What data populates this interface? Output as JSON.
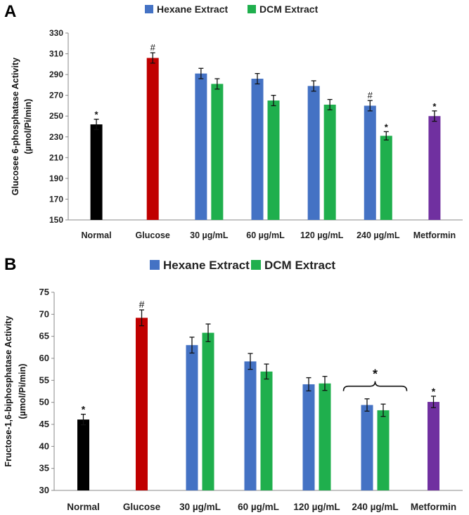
{
  "chart_data": [
    {
      "panel": "A",
      "type": "bar",
      "legend": [
        {
          "name": "Hexane Extract",
          "color": "#4472c4"
        },
        {
          "name": "DCM Extract",
          "color": "#1faf4d"
        }
      ],
      "ylabel_lines": [
        "Glucosee 6-phosphatase Activity",
        "(µmol/Pi/min)"
      ],
      "ylim": [
        150,
        330
      ],
      "yticks": [
        150,
        170,
        190,
        210,
        230,
        250,
        270,
        290,
        310,
        330
      ],
      "categories": [
        "Normal",
        "Glucose",
        "30 µg/mL",
        "60 µg/mL",
        "120 µg/mL",
        "240 µg/mL",
        "Metformin"
      ],
      "bars": [
        {
          "category": "Normal",
          "series": "Normal",
          "color": "#000000",
          "value": 242,
          "error": 5,
          "mark": "*"
        },
        {
          "category": "Glucose",
          "series": "Glucose",
          "color": "#c00000",
          "value": 306,
          "error": 5,
          "mark": "#"
        },
        {
          "category": "30 µg/mL",
          "series": "Hexane Extract",
          "color": "#4472c4",
          "value": 291,
          "error": 5,
          "mark": ""
        },
        {
          "category": "30 µg/mL",
          "series": "DCM Extract",
          "color": "#1faf4d",
          "value": 281,
          "error": 5,
          "mark": ""
        },
        {
          "category": "60 µg/mL",
          "series": "Hexane Extract",
          "color": "#4472c4",
          "value": 286,
          "error": 5,
          "mark": ""
        },
        {
          "category": "60 µg/mL",
          "series": "DCM Extract",
          "color": "#1faf4d",
          "value": 265,
          "error": 5,
          "mark": ""
        },
        {
          "category": "120 µg/mL",
          "series": "Hexane Extract",
          "color": "#4472c4",
          "value": 279,
          "error": 5,
          "mark": ""
        },
        {
          "category": "120 µg/mL",
          "series": "DCM Extract",
          "color": "#1faf4d",
          "value": 261,
          "error": 5,
          "mark": ""
        },
        {
          "category": "240 µg/mL",
          "series": "Hexane Extract",
          "color": "#4472c4",
          "value": 260,
          "error": 5,
          "mark": "#"
        },
        {
          "category": "240 µg/mL",
          "series": "DCM Extract",
          "color": "#1faf4d",
          "value": 231,
          "error": 4,
          "mark": "*"
        },
        {
          "category": "Metformin",
          "series": "Metformin",
          "color": "#7030a0",
          "value": 250,
          "error": 5,
          "mark": "*"
        }
      ],
      "bracket_mark": ""
    },
    {
      "panel": "B",
      "type": "bar",
      "legend": [
        {
          "name": "Hexane Extract",
          "color": "#4472c4"
        },
        {
          "name": "DCM Extract",
          "color": "#1faf4d"
        }
      ],
      "ylabel_lines": [
        "Fructose-1,6-biphosphatase Activity",
        "(µmol/Pi/min)"
      ],
      "ylim": [
        30,
        75
      ],
      "yticks": [
        30,
        35,
        40,
        45,
        50,
        55,
        60,
        65,
        70,
        75
      ],
      "categories": [
        "Normal",
        "Glucose",
        "30 µg/mL",
        "60 µg/mL",
        "120 µg/mL",
        "240 µg/mL",
        "Metformin"
      ],
      "bars": [
        {
          "category": "Normal",
          "series": "Normal",
          "color": "#000000",
          "value": 46.1,
          "error": 1.2,
          "mark": "*"
        },
        {
          "category": "Glucose",
          "series": "Glucose",
          "color": "#c00000",
          "value": 69.2,
          "error": 1.8,
          "mark": "#"
        },
        {
          "category": "30 µg/mL",
          "series": "Hexane Extract",
          "color": "#4472c4",
          "value": 63.0,
          "error": 1.8,
          "mark": ""
        },
        {
          "category": "30 µg/mL",
          "series": "DCM Extract",
          "color": "#1faf4d",
          "value": 65.8,
          "error": 2.0,
          "mark": ""
        },
        {
          "category": "60 µg/mL",
          "series": "Hexane Extract",
          "color": "#4472c4",
          "value": 59.3,
          "error": 1.8,
          "mark": ""
        },
        {
          "category": "60 µg/mL",
          "series": "DCM Extract",
          "color": "#1faf4d",
          "value": 57.0,
          "error": 1.7,
          "mark": ""
        },
        {
          "category": "120 µg/mL",
          "series": "Hexane Extract",
          "color": "#4472c4",
          "value": 54.1,
          "error": 1.5,
          "mark": ""
        },
        {
          "category": "120 µg/mL",
          "series": "DCM Extract",
          "color": "#1faf4d",
          "value": 54.3,
          "error": 1.6,
          "mark": ""
        },
        {
          "category": "240 µg/mL",
          "series": "Hexane Extract",
          "color": "#4472c4",
          "value": 49.4,
          "error": 1.4,
          "mark": ""
        },
        {
          "category": "240 µg/mL",
          "series": "DCM Extract",
          "color": "#1faf4d",
          "value": 48.2,
          "error": 1.4,
          "mark": ""
        },
        {
          "category": "Metformin",
          "series": "Metformin",
          "color": "#7030a0",
          "value": 50.1,
          "error": 1.3,
          "mark": "*"
        }
      ],
      "bracket_mark": "*"
    }
  ]
}
